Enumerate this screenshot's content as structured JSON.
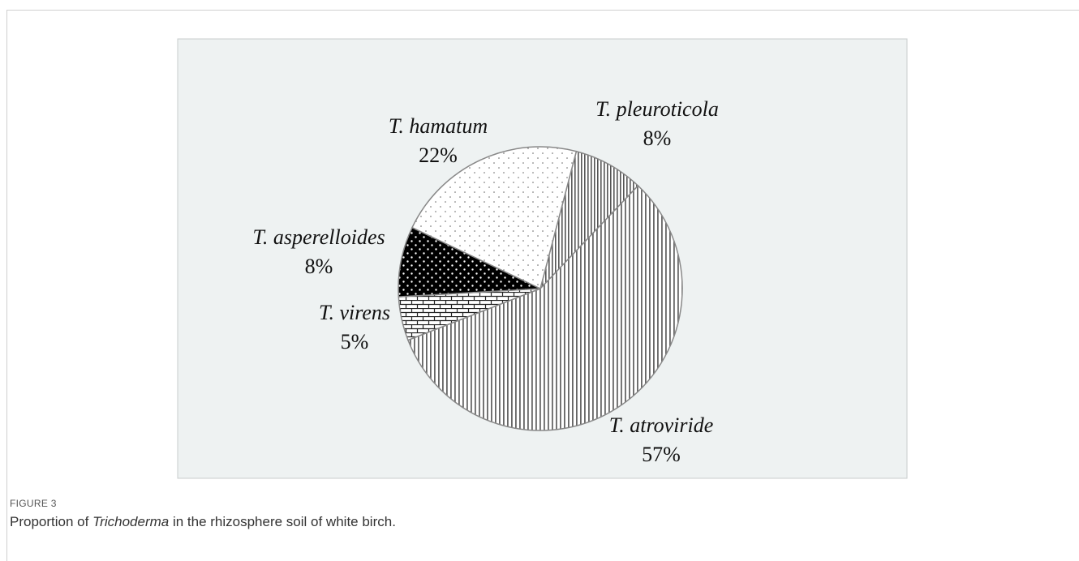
{
  "chart_data": {
    "type": "pie",
    "categories": [
      "T. pleuroticola",
      "T. atroviride",
      "T. virens",
      "T. asperelloides",
      "T. hamatum"
    ],
    "values": [
      8,
      57,
      5,
      8,
      22
    ],
    "value_labels": [
      "8%",
      "57%",
      "5%",
      "8%",
      "22%"
    ]
  },
  "caption": {
    "label": "FIGURE 3",
    "parts": [
      "Proportion of ",
      "Trichoderma",
      " in the rhizosphere soil of white birch."
    ]
  }
}
